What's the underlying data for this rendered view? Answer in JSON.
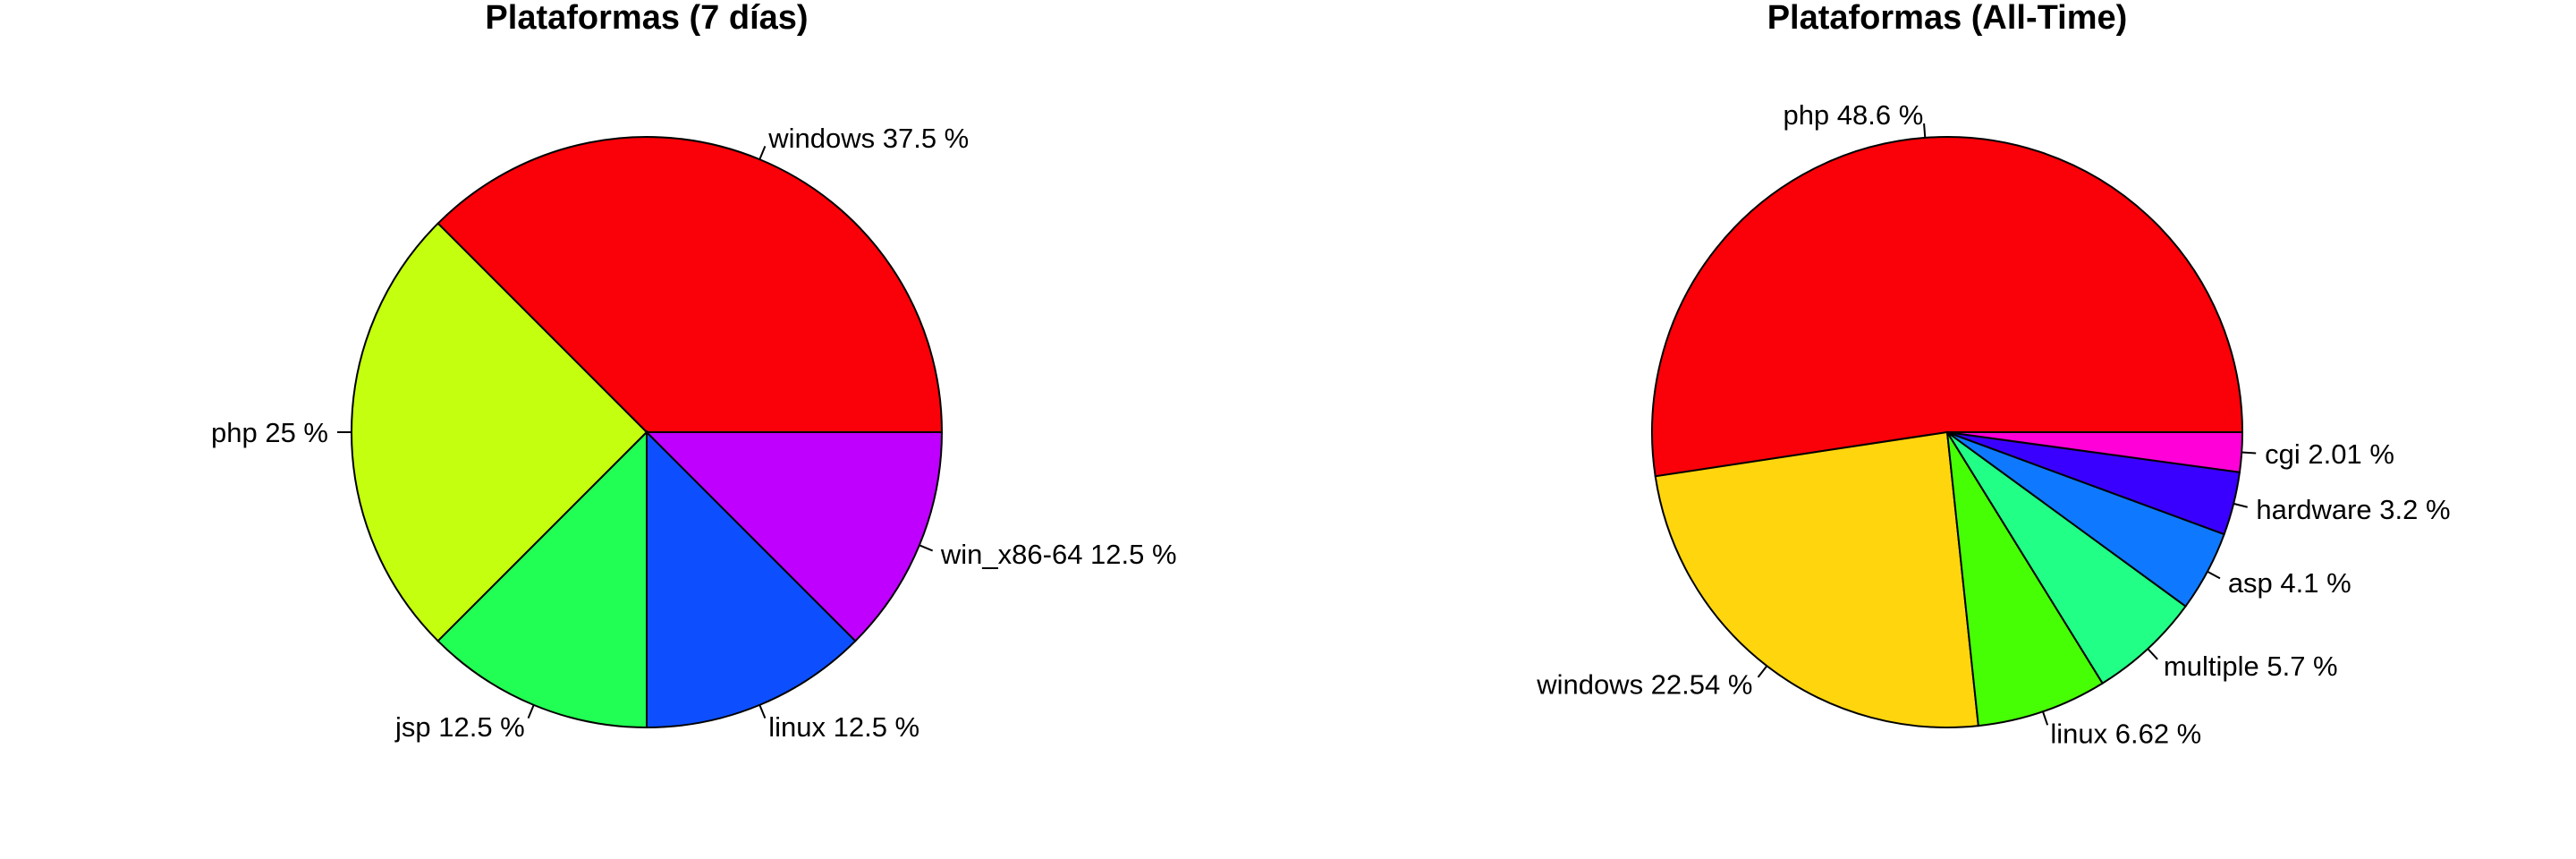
{
  "chart_data": [
    {
      "type": "pie",
      "title": "Plataformas (7 días)",
      "slices": [
        {
          "label": "windows 37.5 %",
          "value": 37.5,
          "color": "#FA0008"
        },
        {
          "label": "php 25 %",
          "value": 25,
          "color": "#C3FF0E"
        },
        {
          "label": "jsp 12.5 %",
          "value": 12.5,
          "color": "#21FF54"
        },
        {
          "label": "linux 12.5 %",
          "value": 12.5,
          "color": "#0D4FFF"
        },
        {
          "label": "win_x86-64 12.5 %",
          "value": 12.5,
          "color": "#BF00FF"
        }
      ]
    },
    {
      "type": "pie",
      "title": "Plataformas (All-Time)",
      "slices": [
        {
          "label": "php 48.6 %",
          "value": 48.6,
          "color": "#FA0008"
        },
        {
          "label": "windows 22.54 %",
          "value": 22.54,
          "color": "#FFD60D"
        },
        {
          "label": "linux 6.62 %",
          "value": 6.62,
          "color": "#47FF05"
        },
        {
          "label": "multiple 5.7 %",
          "value": 5.7,
          "color": "#21FF86"
        },
        {
          "label": "asp 4.1 %",
          "value": 4.1,
          "color": "#0E79FF"
        },
        {
          "label": "hardware 3.2 %",
          "value": 3.2,
          "color": "#3A00FF"
        },
        {
          "label": "cgi 2.01 %",
          "value": 2.01,
          "color": "#FF00D8"
        }
      ]
    }
  ]
}
